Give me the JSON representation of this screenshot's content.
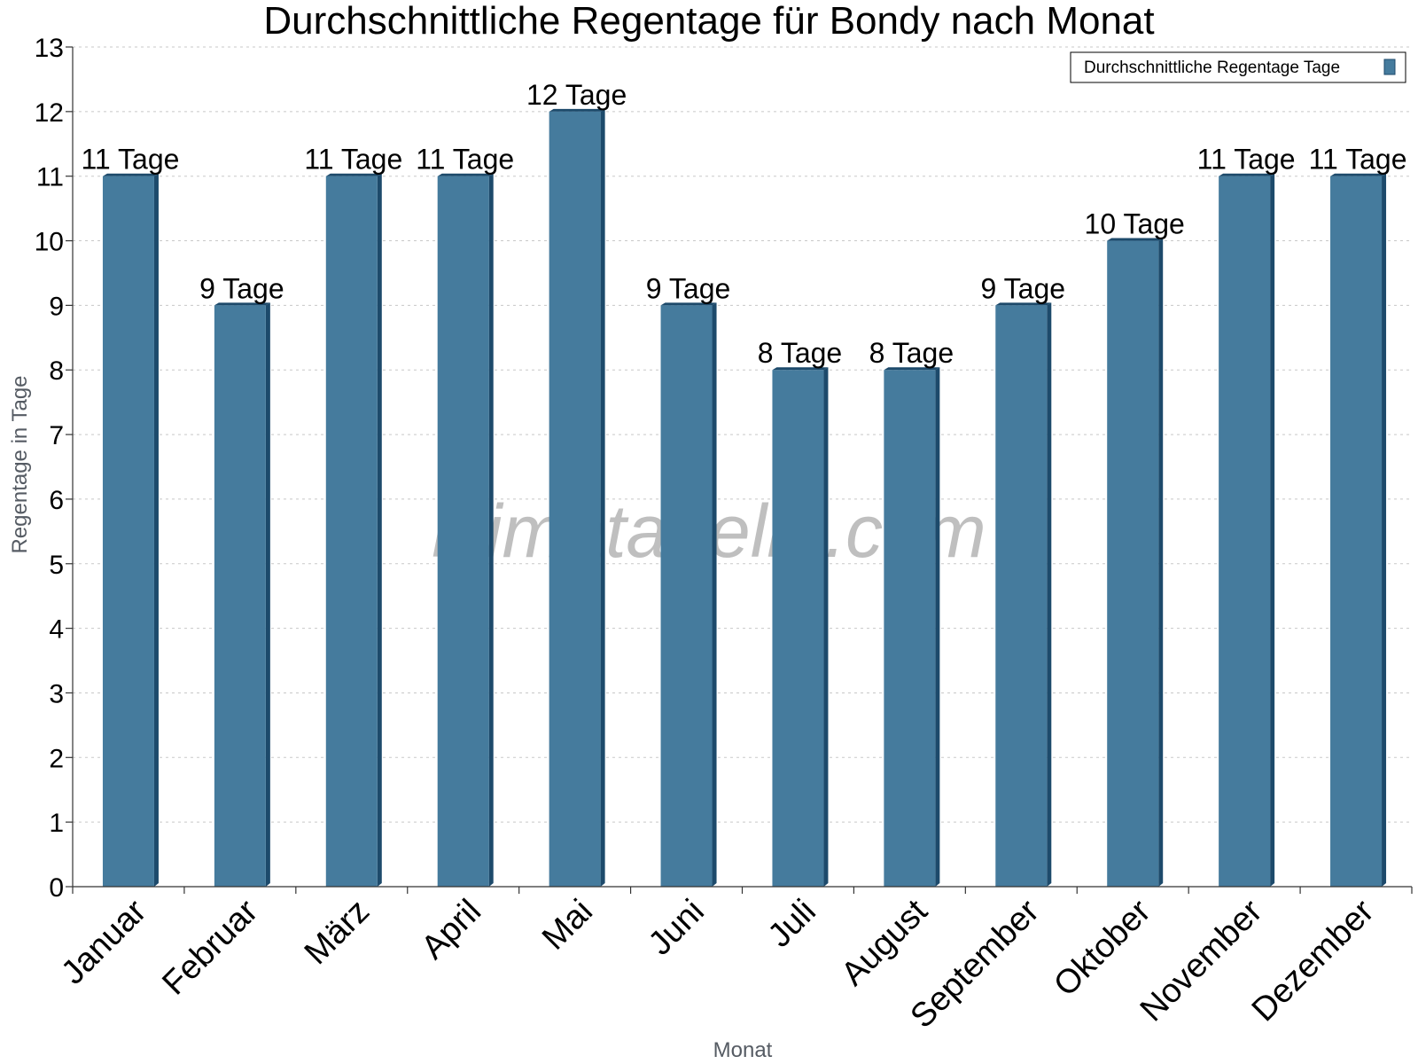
{
  "colors": {
    "bar": "#457b9d",
    "bar_side": "#1d4a6b",
    "bar_top": "#1d4a6b"
  },
  "watermark": "klimatabelle.com",
  "chart_data": {
    "type": "bar",
    "title": "Durchschnittliche Regentage für Bondy nach Monat",
    "xlabel": "Monat",
    "ylabel": "Regentage in Tage",
    "categories": [
      "Januar",
      "Februar",
      "März",
      "April",
      "Mai",
      "Juni",
      "Juli",
      "August",
      "September",
      "Oktober",
      "November",
      "Dezember"
    ],
    "series": [
      {
        "name": "Durchschnittliche Regentage Tage",
        "values": [
          11,
          9,
          11,
          11,
          12,
          9,
          8,
          8,
          9,
          10,
          11,
          11
        ],
        "labels": [
          "11 Tage",
          "9 Tage",
          "11 Tage",
          "11 Tage",
          "12 Tage",
          "9 Tage",
          "8 Tage",
          "8 Tage",
          "9 Tage",
          "10 Tage",
          "11 Tage",
          "11 Tage"
        ]
      }
    ],
    "ylim": [
      0,
      13
    ],
    "yticks": [
      "0",
      "1",
      "2",
      "3",
      "4",
      "5",
      "6",
      "7",
      "8",
      "9",
      "10",
      "11",
      "12",
      "13"
    ],
    "grid": true,
    "legend_position": "top-right"
  }
}
